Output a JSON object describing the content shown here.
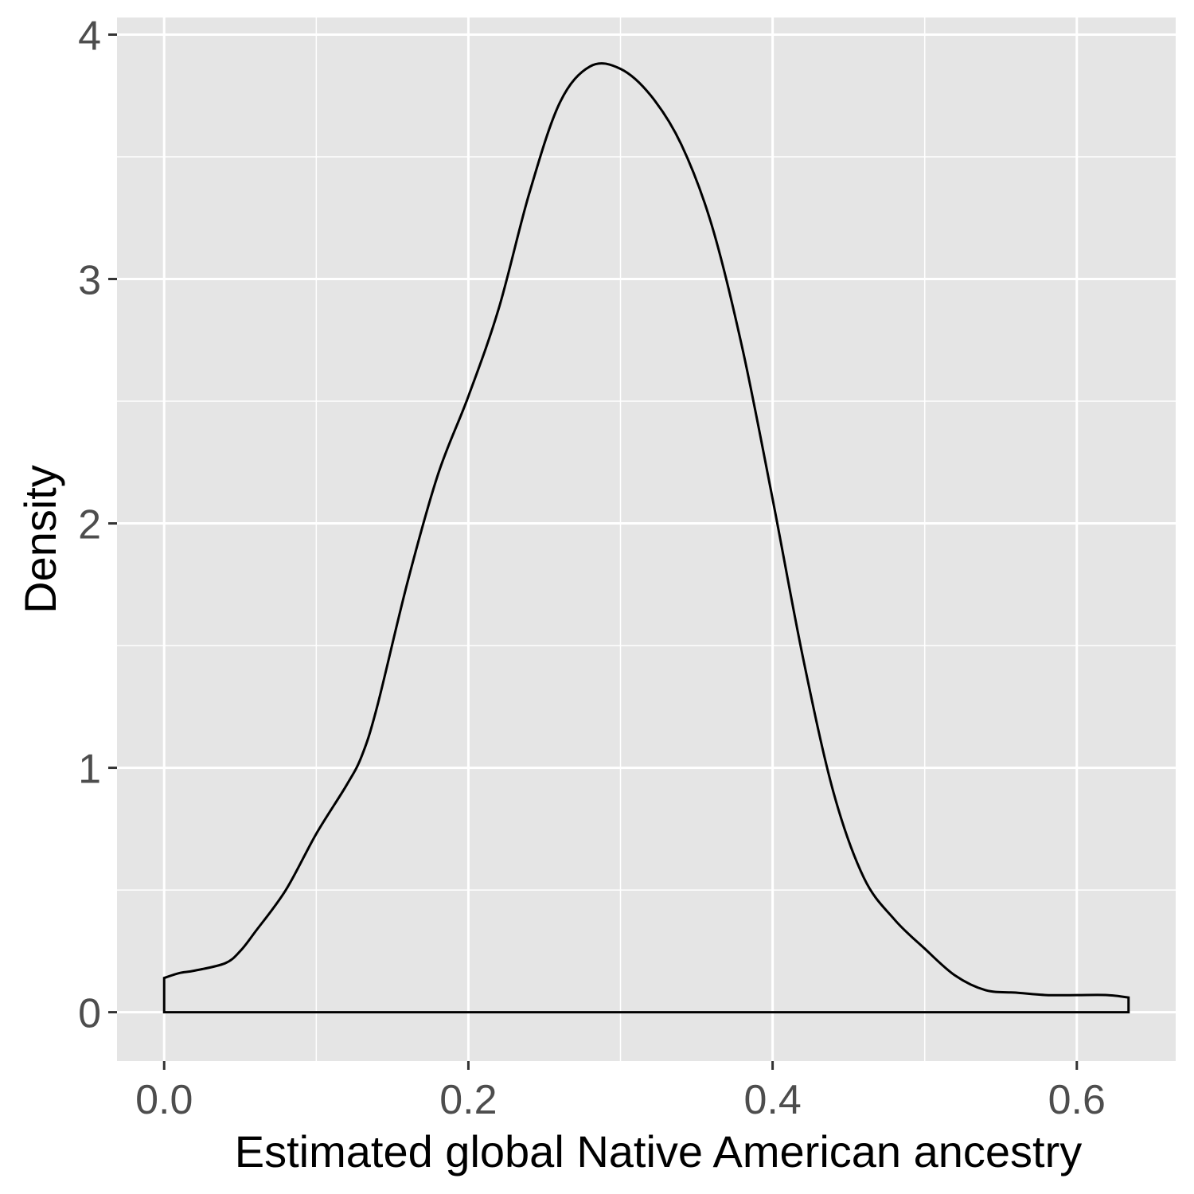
{
  "chart_data": {
    "type": "area",
    "title": "",
    "xlabel": "Estimated global Native American ancestry",
    "ylabel": "Density",
    "xlim": [
      -0.031,
      0.665
    ],
    "ylim": [
      -0.2,
      4.07
    ],
    "x_ticks": [
      0.0,
      0.2,
      0.4,
      0.6
    ],
    "x_tick_labels": [
      "0.0",
      "0.2",
      "0.4",
      "0.6"
    ],
    "y_ticks": [
      0,
      1,
      2,
      3,
      4
    ],
    "y_tick_labels": [
      "0",
      "1",
      "2",
      "3",
      "4"
    ],
    "grid": true,
    "legend": "none",
    "panel_background": "#e5e5e5",
    "grid_color": "#ffffff",
    "line_color": "#000000",
    "series": [
      {
        "x": [
          0.0,
          0.01,
          0.02,
          0.04,
          0.05,
          0.06,
          0.08,
          0.1,
          0.12,
          0.13,
          0.14,
          0.16,
          0.18,
          0.2,
          0.22,
          0.24,
          0.26,
          0.28,
          0.3,
          0.32,
          0.34,
          0.36,
          0.38,
          0.4,
          0.42,
          0.44,
          0.46,
          0.48,
          0.5,
          0.52,
          0.54,
          0.56,
          0.58,
          0.6,
          0.62,
          0.634
        ],
        "y": [
          0.14,
          0.16,
          0.17,
          0.2,
          0.25,
          0.33,
          0.5,
          0.73,
          0.93,
          1.05,
          1.25,
          1.76,
          2.2,
          2.52,
          2.88,
          3.35,
          3.72,
          3.87,
          3.86,
          3.75,
          3.55,
          3.22,
          2.72,
          2.1,
          1.45,
          0.9,
          0.55,
          0.38,
          0.26,
          0.15,
          0.09,
          0.08,
          0.07,
          0.07,
          0.07,
          0.06
        ]
      }
    ]
  }
}
